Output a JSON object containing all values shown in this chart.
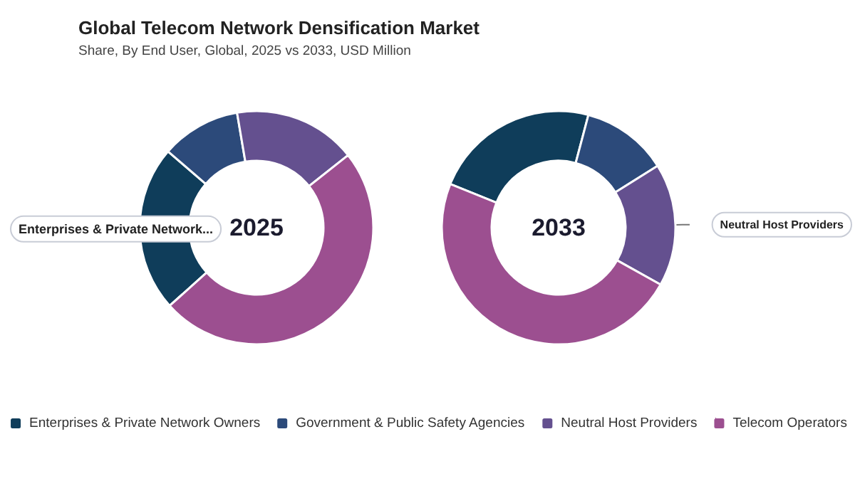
{
  "chart_data": {
    "type": "donut",
    "title": "Global Telecom Network Densification Market",
    "subtitle": "Share, By End User, Global, 2025 vs 2033, USD Million",
    "legend": "bottom",
    "categories": [
      "Enterprises & Private Network Owners",
      "Government & Public Safety Agencies",
      "Neutral Host Providers",
      "Telecom Operators"
    ],
    "colors": [
      "#0f3d5a",
      "#2c4a7a",
      "#64508f",
      "#9c4f90"
    ],
    "series": [
      {
        "name": "2025",
        "values": [
          23,
          11,
          17,
          49
        ]
      },
      {
        "name": "2033",
        "values": [
          23,
          12,
          17,
          48
        ]
      }
    ],
    "annotations": [
      {
        "text": "Enterprises & Private Network...",
        "x": "Enterprises & Private Network Owners"
      },
      {
        "text": "Neutral Host Providers",
        "x": "Neutral Host Providers"
      }
    ]
  }
}
